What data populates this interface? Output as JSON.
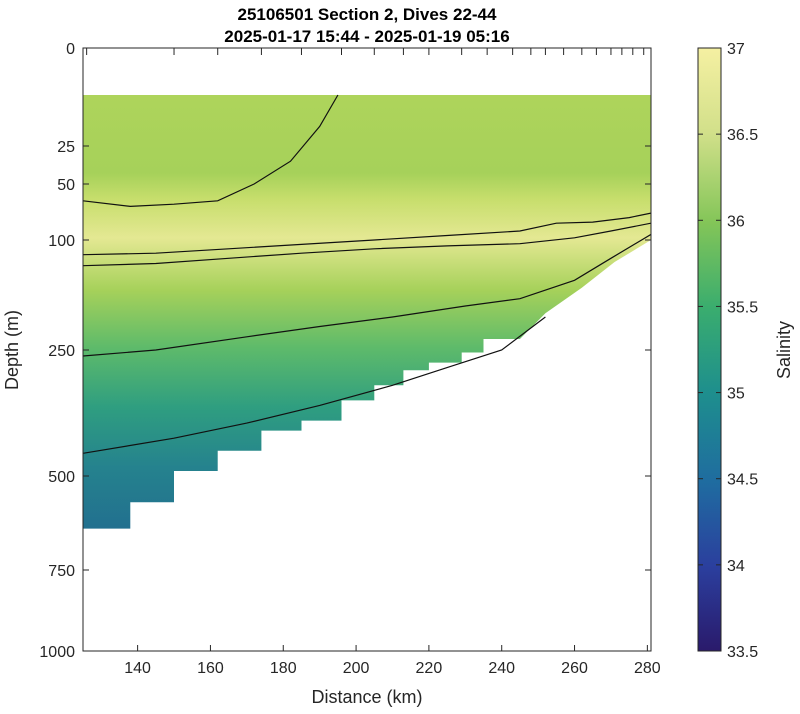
{
  "chart_data": {
    "type": "heatmap",
    "title_lines": [
      "25106501 Section 2, Dives 22-44",
      "2025-01-17 15:44 - 2025-01-19 05:16"
    ],
    "xlabel": "Distance (km)",
    "ylabel": "Depth (m)",
    "xlim": [
      125,
      281
    ],
    "ylim": [
      0,
      1000
    ],
    "y_scale": "nonlinear (compressed near surface)",
    "xticks": [
      140,
      160,
      180,
      200,
      220,
      240,
      260,
      280
    ],
    "yticks": [
      0,
      25,
      50,
      100,
      250,
      500,
      750,
      1000
    ],
    "colorbar": {
      "label": "Salinity",
      "range": [
        33.5,
        37
      ],
      "ticks": [
        33.5,
        34,
        34.5,
        35,
        35.5,
        36,
        36.5,
        37
      ],
      "colormap": [
        "#2a1a6b",
        "#2b3f9e",
        "#1f6ca0",
        "#1e8f8d",
        "#3aad6e",
        "#83c558",
        "#d2e08a",
        "#f5f0a2"
      ]
    },
    "data_top_depth": 12,
    "dive_distances": [
      126,
      150,
      162,
      174,
      185,
      196,
      205,
      213,
      220,
      229,
      236,
      243,
      248,
      252,
      257,
      262,
      266,
      270,
      273,
      276,
      279
    ],
    "data_bottom_profile": [
      [
        125,
        640
      ],
      [
        138,
        640
      ],
      [
        138,
        570
      ],
      [
        150,
        570
      ],
      [
        150,
        490
      ],
      [
        162,
        490
      ],
      [
        162,
        450
      ],
      [
        174,
        450
      ],
      [
        174,
        410
      ],
      [
        185,
        410
      ],
      [
        185,
        390
      ],
      [
        196,
        390
      ],
      [
        196,
        350
      ],
      [
        205,
        350
      ],
      [
        205,
        320
      ],
      [
        213,
        320
      ],
      [
        213,
        290
      ],
      [
        220,
        290
      ],
      [
        220,
        275
      ],
      [
        229,
        275
      ],
      [
        229,
        255
      ],
      [
        235,
        255
      ],
      [
        235,
        235
      ],
      [
        245,
        235
      ],
      [
        252,
        200
      ],
      [
        262,
        165
      ],
      [
        271,
        130
      ],
      [
        281,
        100
      ]
    ],
    "contours": [
      {
        "level": 36.5,
        "points": [
          [
            125,
            65
          ],
          [
            138,
            70
          ],
          [
            150,
            68
          ],
          [
            162,
            65
          ],
          [
            172,
            50
          ],
          [
            182,
            35
          ],
          [
            190,
            20
          ],
          [
            195,
            12
          ]
        ]
      },
      {
        "level": 36.6,
        "points": [
          [
            125,
            120
          ],
          [
            145,
            118
          ],
          [
            165,
            112
          ],
          [
            185,
            106
          ],
          [
            205,
            100
          ],
          [
            225,
            96
          ],
          [
            245,
            92
          ],
          [
            255,
            85
          ],
          [
            265,
            84
          ],
          [
            275,
            80
          ],
          [
            281,
            76
          ]
        ]
      },
      {
        "level": 36.7,
        "points": [
          [
            125,
            135
          ],
          [
            145,
            132
          ],
          [
            165,
            125
          ],
          [
            185,
            118
          ],
          [
            205,
            112
          ],
          [
            225,
            108
          ],
          [
            245,
            105
          ],
          [
            260,
            98
          ],
          [
            270,
            92
          ],
          [
            281,
            85
          ]
        ]
      },
      {
        "level": 36.3,
        "points": [
          [
            125,
            262
          ],
          [
            145,
            250
          ],
          [
            170,
            232
          ],
          [
            190,
            218
          ],
          [
            210,
            205
          ],
          [
            230,
            190
          ],
          [
            245,
            180
          ],
          [
            260,
            155
          ],
          [
            270,
            125
          ],
          [
            281,
            95
          ]
        ]
      },
      {
        "level": 35.8,
        "points": [
          [
            125,
            455
          ],
          [
            150,
            425
          ],
          [
            170,
            395
          ],
          [
            190,
            360
          ],
          [
            210,
            320
          ],
          [
            225,
            285
          ],
          [
            240,
            250
          ],
          [
            252,
            205
          ]
        ]
      }
    ]
  }
}
